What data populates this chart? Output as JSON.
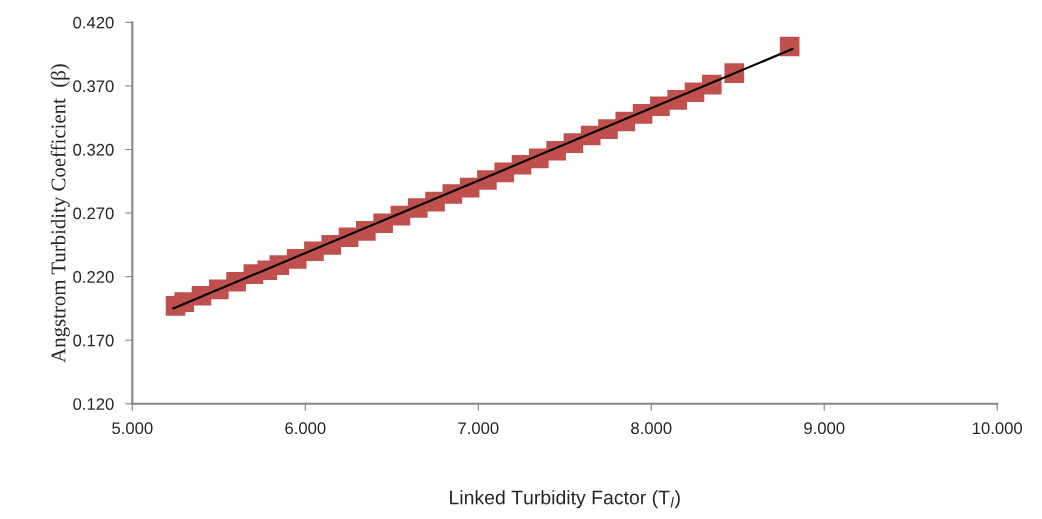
{
  "chart_data": {
    "type": "scatter",
    "xlabel": "Linked Turbidity Factor (T$_{l}$)",
    "ylabel": "Angstrom Turbidity Coefficient  (β)",
    "xlim": [
      5,
      10
    ],
    "ylim": [
      0.12,
      0.42
    ],
    "xticks": [
      {
        "value": 5,
        "label": "5.000"
      },
      {
        "value": 6,
        "label": "6.000"
      },
      {
        "value": 7,
        "label": "7.000"
      },
      {
        "value": 8,
        "label": "8.000"
      },
      {
        "value": 9,
        "label": "9.000"
      },
      {
        "value": 10,
        "label": "10.000"
      }
    ],
    "yticks": [
      {
        "value": 0.12,
        "label": "0.120"
      },
      {
        "value": 0.17,
        "label": "0.170"
      },
      {
        "value": 0.22,
        "label": "0.220"
      },
      {
        "value": 0.27,
        "label": "0.270"
      },
      {
        "value": 0.32,
        "label": "0.320"
      },
      {
        "value": 0.37,
        "label": "0.370"
      },
      {
        "value": 0.42,
        "label": "0.420"
      }
    ],
    "grid": false,
    "legend": false,
    "series": [
      {
        "color": "#c0504d",
        "marker": "square",
        "x": [
          5.25,
          5.3,
          5.4,
          5.5,
          5.6,
          5.7,
          5.78,
          5.85,
          5.95,
          6.05,
          6.15,
          6.25,
          6.35,
          6.45,
          6.55,
          6.65,
          6.75,
          6.85,
          6.95,
          7.05,
          7.15,
          7.25,
          7.35,
          7.45,
          7.55,
          7.65,
          7.75,
          7.85,
          7.95,
          8.05,
          8.15,
          8.25,
          8.35,
          8.48,
          8.8
        ],
        "values": [
          0.197,
          0.2,
          0.205,
          0.21,
          0.216,
          0.222,
          0.225,
          0.229,
          0.234,
          0.24,
          0.245,
          0.251,
          0.256,
          0.262,
          0.268,
          0.274,
          0.279,
          0.285,
          0.29,
          0.296,
          0.302,
          0.308,
          0.313,
          0.319,
          0.325,
          0.331,
          0.336,
          0.342,
          0.348,
          0.354,
          0.359,
          0.365,
          0.371,
          0.38,
          0.401
        ]
      },
      {
        "type": "line",
        "color": "#000000",
        "marker": "none",
        "line_style": "solid",
        "x": [
          5.236,
          8.816
        ],
        "values": [
          0.195,
          0.399
        ]
      }
    ]
  }
}
